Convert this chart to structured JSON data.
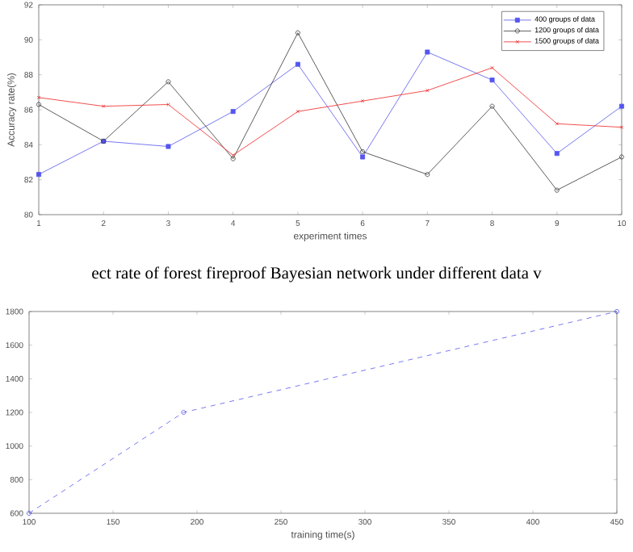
{
  "chart_data": [
    {
      "type": "line",
      "xlabel": "experiment times",
      "ylabel": "Accuracy rate(%)",
      "x": [
        1,
        2,
        3,
        4,
        5,
        6,
        7,
        8,
        9,
        10
      ],
      "xlim": [
        1,
        10
      ],
      "xticks": [
        1,
        2,
        3,
        4,
        5,
        6,
        7,
        8,
        9,
        10
      ],
      "ylim": [
        80,
        92
      ],
      "yticks": [
        80,
        82,
        84,
        86,
        88,
        90,
        92
      ],
      "legend": "top right",
      "grid": false,
      "annotations": [
        "ect rate of forest fireproof Bayesian network under different data v"
      ],
      "series": [
        {
          "name": "400 groups of data",
          "color": "#5555ee",
          "marker": "square",
          "values": [
            82.3,
            84.2,
            83.9,
            85.9,
            88.6,
            83.3,
            89.3,
            87.7,
            83.5,
            86.2
          ]
        },
        {
          "name": "1200 groups of data",
          "color": "#333333",
          "marker": "circle",
          "values": [
            86.3,
            84.2,
            87.6,
            83.2,
            90.4,
            83.6,
            82.3,
            86.2,
            81.4,
            83.3
          ]
        },
        {
          "name": "1500 groups of data",
          "color": "#ee2222",
          "marker": "cross",
          "values": [
            86.7,
            86.2,
            86.3,
            83.4,
            85.9,
            86.5,
            87.1,
            88.4,
            85.2,
            85.0
          ]
        }
      ]
    },
    {
      "type": "line",
      "xlabel": "training time(s)",
      "x": [
        100,
        192,
        450
      ],
      "xlim": [
        100,
        450
      ],
      "xticks": [
        100,
        150,
        200,
        250,
        300,
        350,
        400,
        450
      ],
      "ylim": [
        600,
        1800
      ],
      "yticks": [
        600,
        800,
        1000,
        1200,
        1400,
        1600,
        1800
      ],
      "grid": false,
      "legend": false,
      "line_style": "dashed",
      "marker": "circle",
      "series": [
        {
          "color": "#5555ee",
          "values": [
            600,
            1200,
            1800
          ]
        }
      ]
    }
  ]
}
